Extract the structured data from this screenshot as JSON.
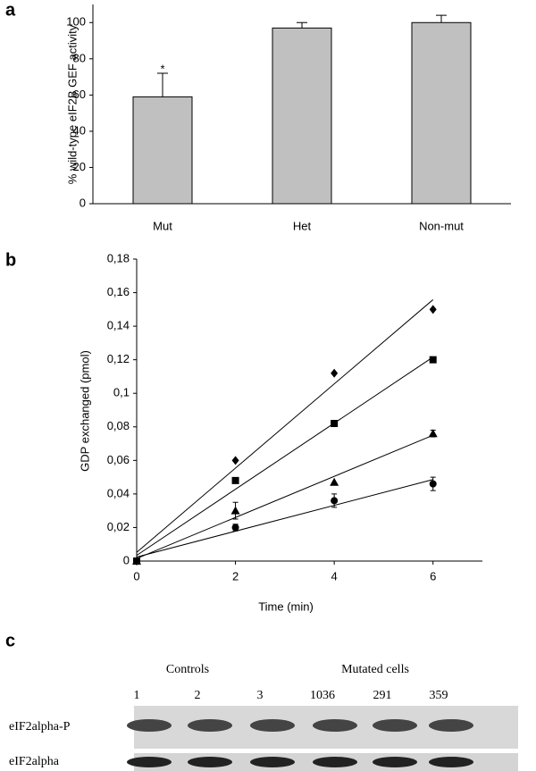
{
  "chart_data": [
    {
      "type": "bar",
      "panel": "a",
      "ylabel": "% wild-type eIF2B GEF activity",
      "categories": [
        "Mut",
        "Het",
        "Non-mut"
      ],
      "values": [
        59,
        97,
        100
      ],
      "errors": [
        13,
        3,
        4
      ],
      "color": "#c0c0c0",
      "ylim": [
        0,
        110
      ],
      "yticks": [
        0,
        20,
        40,
        60,
        80,
        100
      ],
      "annotations": [
        {
          "text": "*",
          "x": "Mut"
        }
      ]
    },
    {
      "type": "scatter",
      "panel": "b",
      "xlabel": "Time (min)",
      "ylabel": "GDP exchanged (pmol)",
      "x": [
        0,
        2,
        4,
        6
      ],
      "xlim": [
        0,
        7
      ],
      "xticks": [
        0,
        2,
        4,
        6
      ],
      "ylim": [
        0,
        0.18
      ],
      "yticks": [
        0,
        {
          "value": 0.02,
          "label": "0,02"
        },
        {
          "value": 0.04,
          "label": "0,04"
        },
        {
          "value": 0.06,
          "label": "0,06"
        },
        {
          "value": 0.08,
          "label": "0,08"
        },
        {
          "value": 0.1,
          "label": "0,1"
        },
        {
          "value": 0.12,
          "label": "0,12"
        },
        {
          "value": 0.14,
          "label": "0,14"
        },
        {
          "value": 0.16,
          "label": "0,16"
        },
        {
          "value": 0.18,
          "label": "0,18"
        }
      ],
      "trendline": true,
      "series": [
        {
          "marker": "diamond",
          "color": "#000000",
          "values": [
            0,
            0.06,
            0.112,
            0.15
          ],
          "errors": [
            0,
            0,
            0,
            0
          ]
        },
        {
          "marker": "square",
          "color": "#000000",
          "values": [
            0,
            0.048,
            0.082,
            0.12
          ],
          "errors": [
            0,
            0,
            0,
            0
          ]
        },
        {
          "marker": "triangle",
          "color": "#000000",
          "values": [
            0,
            0.03,
            0.047,
            0.076
          ],
          "errors": [
            0,
            0.005,
            0,
            0.002
          ]
        },
        {
          "marker": "circle",
          "color": "#000000",
          "values": [
            0,
            0.02,
            0.036,
            0.046
          ],
          "errors": [
            0,
            0.002,
            0.004,
            0.004
          ]
        }
      ]
    }
  ],
  "blot": {
    "panel": "c",
    "groups": [
      "Controls",
      "Mutated cells"
    ],
    "lanes": [
      "1",
      "2",
      "3",
      "1036",
      "291",
      "359"
    ],
    "rows": [
      "eIF2alpha-P",
      "eIF2alpha"
    ]
  }
}
